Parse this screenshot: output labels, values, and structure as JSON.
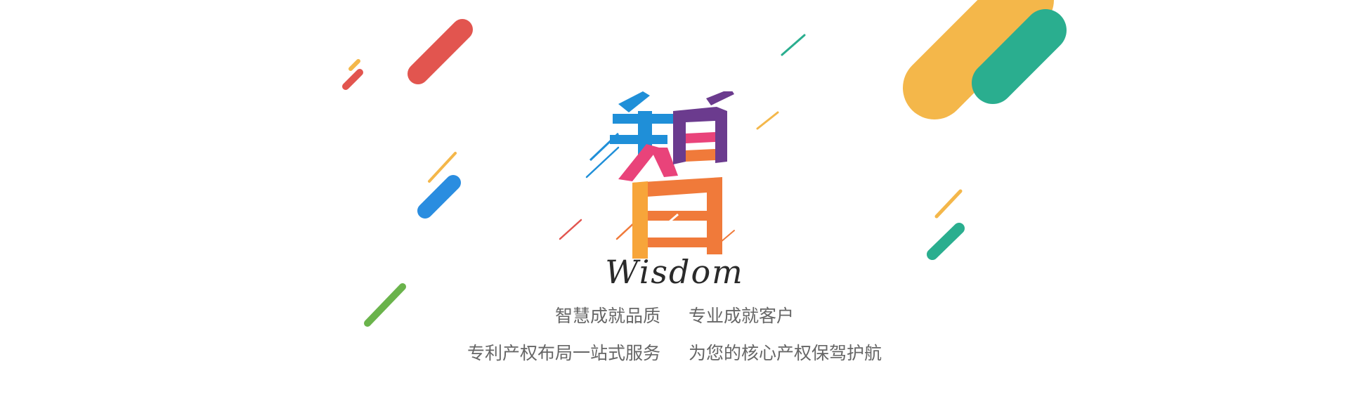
{
  "hero": {
    "character": "智",
    "subtitle": "Wisdom"
  },
  "taglines": {
    "line1_left": "智慧成就品质",
    "line1_right": "专业成就客户",
    "line2_left": "专利产权布局一站式服务",
    "line2_right": "为您的核心产权保驾护航"
  },
  "colors": {
    "red": "#e2554f",
    "yellow": "#f4b74a",
    "teal": "#2aae8f",
    "blue": "#2a8de0",
    "green": "#6ab34b",
    "pink": "#e9437a",
    "purple": "#6b3b8e",
    "orange": "#f07a3a",
    "cyan": "#1f8fd8"
  },
  "icons": {
    "hero": "wisdom-character-graphic"
  }
}
